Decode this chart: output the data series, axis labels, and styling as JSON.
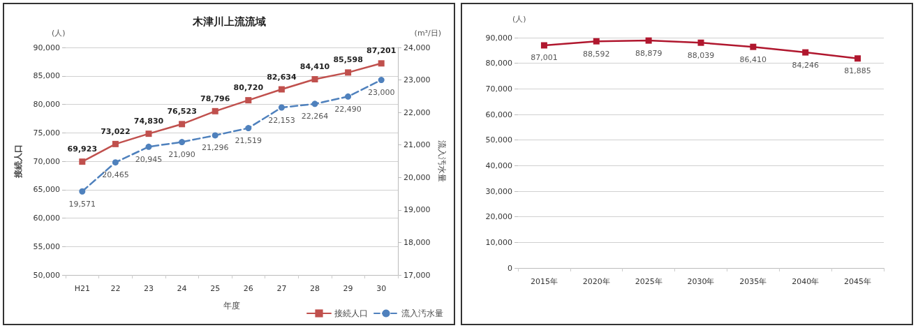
{
  "chart_data": [
    {
      "type": "line",
      "title": "木津川上流流域",
      "xlabel": "年度",
      "ylabel": "接続人口",
      "y2label": "流入汚水量",
      "annotations": [
        "(人)",
        "(m³/日)"
      ],
      "categories": [
        "H21",
        "22",
        "23",
        "24",
        "25",
        "26",
        "27",
        "28",
        "29",
        "30"
      ],
      "series": [
        {
          "name": "接続人口",
          "color": "#c0504d",
          "marker": "square",
          "line_style": "solid",
          "values": [
            69923,
            73022,
            74830,
            76523,
            78796,
            80720,
            82634,
            84410,
            85598,
            87201
          ],
          "value_labels": [
            "69,923",
            "73,022",
            "74,830",
            "76,523",
            "78,796",
            "80,720",
            "82,634",
            "84,410",
            "85,598",
            "87,201"
          ]
        },
        {
          "name": "流入汚水量",
          "color": "#4f81bd",
          "marker": "circle",
          "line_style": "dashed",
          "axis": "y2",
          "values": [
            19571,
            20465,
            20945,
            21090,
            21296,
            21519,
            22153,
            22264,
            22490,
            23000
          ],
          "value_labels": [
            "19,571",
            "20,465",
            "20,945",
            "21,090",
            "21,296",
            "21,519",
            "22,153",
            "22,264",
            "22,490",
            "23,000"
          ]
        }
      ],
      "ylim": [
        50000,
        90000
      ],
      "yticks": [
        {
          "value": 50000,
          "label": "50,000"
        },
        {
          "value": 55000,
          "label": "55,000"
        },
        {
          "value": 60000,
          "label": "60,000"
        },
        {
          "value": 65000,
          "label": "65,000"
        },
        {
          "value": 70000,
          "label": "70,000"
        },
        {
          "value": 75000,
          "label": "75,000"
        },
        {
          "value": 80000,
          "label": "80,000"
        },
        {
          "value": 85000,
          "label": "85,000"
        },
        {
          "value": 90000,
          "label": "90,000"
        }
      ],
      "y2lim": [
        17000,
        24000
      ],
      "y2ticks": [
        {
          "value": 17000,
          "label": "17,000"
        },
        {
          "value": 18000,
          "label": "18,000"
        },
        {
          "value": 19000,
          "label": "19,000"
        },
        {
          "value": 20000,
          "label": "20,000"
        },
        {
          "value": 21000,
          "label": "21,000"
        },
        {
          "value": 22000,
          "label": "22,000"
        },
        {
          "value": 23000,
          "label": "23,000"
        },
        {
          "value": 24000,
          "label": "24,000"
        }
      ],
      "grid": "y",
      "legend": "bottom right"
    },
    {
      "type": "line",
      "annotations": [
        "(人)"
      ],
      "categories": [
        "2015年",
        "2020年",
        "2025年",
        "2030年",
        "2035年",
        "2040年",
        "2045年"
      ],
      "series": [
        {
          "color": "#b0172e",
          "marker": "square",
          "line_style": "solid",
          "values": [
            87001,
            88592,
            88879,
            88039,
            86410,
            84246,
            81885
          ],
          "value_labels": [
            "87,001",
            "88,592",
            "88,879",
            "88,039",
            "86,410",
            "84,246",
            "81,885"
          ]
        }
      ],
      "ylim": [
        0,
        90000
      ],
      "yticks": [
        0,
        {
          "value": 10000,
          "label": "10,000"
        },
        {
          "value": 20000,
          "label": "20,000"
        },
        {
          "value": 30000,
          "label": "30,000"
        },
        {
          "value": 40000,
          "label": "40,000"
        },
        {
          "value": 50000,
          "label": "50,000"
        },
        {
          "value": 60000,
          "label": "60,000"
        },
        {
          "value": 70000,
          "label": "70,000"
        },
        {
          "value": 80000,
          "label": "80,000"
        },
        {
          "value": 90000,
          "label": "90,000"
        }
      ],
      "grid": "y",
      "legend": false
    }
  ]
}
